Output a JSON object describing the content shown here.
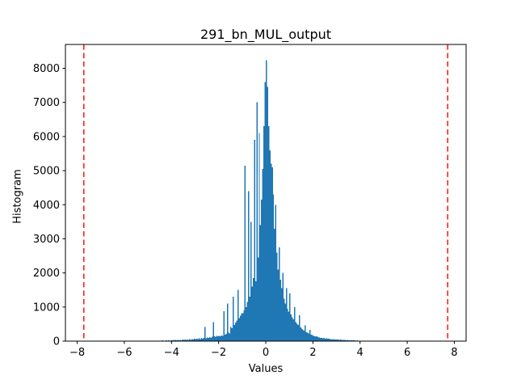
{
  "window": {
    "background": "#ffffff"
  },
  "chart_data": {
    "type": "bar",
    "subtype": "histogram",
    "title": "291_bn_MUL_output",
    "xlabel": "Values",
    "ylabel": "Histogram",
    "xlim": [
      -8.5,
      8.5
    ],
    "ylim": [
      0,
      8700
    ],
    "xticks": [
      -8,
      -6,
      -4,
      -2,
      0,
      2,
      4,
      6,
      8
    ],
    "xtick_labels": [
      "−8",
      "−6",
      "−4",
      "−2",
      "0",
      "2",
      "4",
      "6",
      "8"
    ],
    "yticks": [
      0,
      1000,
      2000,
      3000,
      4000,
      5000,
      6000,
      7000,
      8000
    ],
    "ytick_labels": [
      "0",
      "1000",
      "2000",
      "3000",
      "4000",
      "5000",
      "6000",
      "7000",
      "8000"
    ],
    "grid": false,
    "legend": "none",
    "bar_color": "#1f77b4",
    "axis_color": "#000000",
    "vline_color": "#ff0000",
    "vline_style": "dashed",
    "vlines": [
      -7.72,
      7.72
    ],
    "bins": {
      "start": -4.6,
      "width": 0.05
    },
    "heights": [
      12,
      0,
      15,
      0,
      18,
      0,
      14,
      22,
      0,
      25,
      17,
      28,
      20,
      30,
      22,
      33,
      24,
      36,
      26,
      40,
      28,
      44,
      32,
      48,
      35,
      52,
      38,
      57,
      41,
      62,
      45,
      68,
      55,
      75,
      60,
      82,
      65,
      90,
      70,
      98,
      420,
      88,
      105,
      92,
      115,
      100,
      128,
      560,
      140,
      122,
      158,
      138,
      150,
      140,
      165,
      155,
      880,
      185,
      215,
      1100,
      245,
      230,
      420,
      380,
      1300,
      480,
      540,
      600,
      1500,
      680,
      750,
      820,
      820,
      900,
      5150,
      1000,
      1150,
      4400,
      1300,
      3500,
      1600,
      1850,
      5900,
      1760,
      7000,
      2450,
      6100,
      3400,
      4150,
      5050,
      6300,
      7600,
      8240,
      7450,
      6300,
      5600,
      5200,
      5100,
      4300,
      3300,
      4000,
      2600,
      2100,
      2750,
      1800,
      1550,
      2000,
      1250,
      1100,
      1550,
      950,
      860,
      1400,
      780,
      700,
      640,
      1000,
      560,
      510,
      470,
      760,
      400,
      370,
      340,
      310,
      460,
      265,
      245,
      225,
      330,
      190,
      175,
      160,
      145,
      130,
      140,
      115,
      105,
      95,
      100,
      85,
      90,
      75,
      80,
      66,
      70,
      58,
      62,
      51,
      54,
      45,
      48,
      45,
      50,
      40,
      44,
      36,
      39,
      32,
      35,
      28,
      31,
      25,
      27,
      22,
      24,
      20,
      21,
      17,
      19,
      15,
      16,
      12,
      14,
      0,
      11,
      0,
      9,
      0,
      8,
      0,
      7,
      0,
      6
    ]
  }
}
